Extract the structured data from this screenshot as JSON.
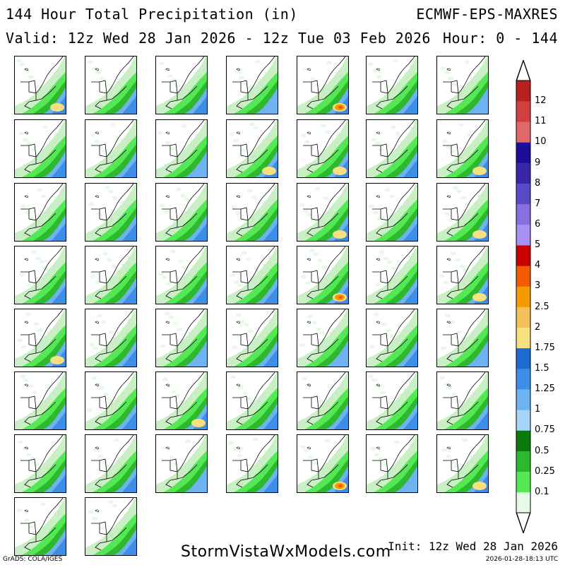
{
  "header": {
    "title": "144 Hour Total Precipitation (in)",
    "model": "ECMWF-EPS-MAXRES",
    "valid": "Valid: 12z Wed 28 Jan 2026 - 12z Tue 03 Feb 2026",
    "hour": "Hour: 0 - 144"
  },
  "panels": {
    "count": 51,
    "columns": 7,
    "intensity": [
      2,
      1,
      1,
      0,
      3,
      1,
      0,
      1,
      1,
      0,
      2,
      2,
      1,
      2,
      1,
      1,
      1,
      1,
      2,
      1,
      2,
      1,
      1,
      1,
      1,
      3,
      1,
      2,
      2,
      1,
      0,
      1,
      0,
      1,
      0,
      1,
      1,
      2,
      1,
      1,
      1,
      1,
      1,
      1,
      0,
      1,
      3,
      0,
      2,
      1,
      1
    ],
    "region": "Northeast United States"
  },
  "colorbar": {
    "levels": [
      "0.1",
      "0.25",
      "0.5",
      "0.75",
      "1",
      "1.25",
      "1.5",
      "1.75",
      "2",
      "2.5",
      "3",
      "4",
      "5",
      "6",
      "7",
      "8",
      "9",
      "10",
      "11",
      "12"
    ],
    "colors": [
      "#e6fae6",
      "#55e855",
      "#2eb82e",
      "#0a7a0a",
      "#a8d4f8",
      "#6fb2f0",
      "#3c8ee6",
      "#1e6cd2",
      "#f8e080",
      "#f5c05a",
      "#f59a00",
      "#f55a00",
      "#c80000",
      "#a890f5",
      "#8870e0",
      "#5a4ac8",
      "#3a26a8",
      "#1c0e9a",
      "#e06a6a",
      "#d04040",
      "#b82020"
    ]
  },
  "footer": {
    "watermark": "StormVistaWxModels.com",
    "init": "Init: 12z Wed 28 Jan 2026",
    "grads": "GrADS: COLA/IGES",
    "timestamp": "2026-01-28-18:13 UTC"
  }
}
